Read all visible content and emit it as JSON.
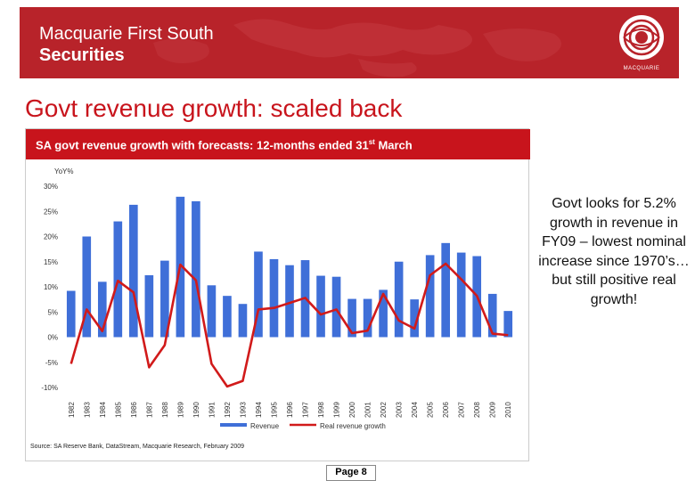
{
  "header": {
    "brand_line1": "Macquarie First South",
    "brand_line2": "Securities",
    "logo_text": "MACQUARIE"
  },
  "slide_title": "Govt revenue growth: scaled back",
  "chart_header": {
    "title_main": "SA govt revenue growth with forecasts:  12-months ended 31",
    "title_sup": "st",
    "title_end": " March"
  },
  "side_note": "Govt looks for 5.2% growth in revenue in FY09 – lowest nominal increase since 1970’s…but still positive real growth!",
  "source": "Source: SA Reserve Bank, DataStream, Macquarie Research, February 2009",
  "page_label": "Page 8",
  "colors": {
    "banner": "#b8232a",
    "title_red": "#c8141c",
    "bar": "#3f6fd8",
    "line": "#d11a1a"
  },
  "chart_data": {
    "type": "bar",
    "title": "SA govt revenue growth with forecasts:  12-months ended 31st March",
    "ylabel": "YoY%",
    "xlabel": "",
    "ylim": [
      -10,
      30
    ],
    "yticks": [
      "-10%",
      "-5%",
      "0%",
      "5%",
      "10%",
      "15%",
      "20%",
      "25%",
      "30%"
    ],
    "grid": false,
    "legend_position": "bottom",
    "categories": [
      "1982",
      "1983",
      "1984",
      "1985",
      "1986",
      "1987",
      "1988",
      "1989",
      "1990",
      "1991",
      "1992",
      "1993",
      "1994",
      "1995",
      "1996",
      "1997",
      "1998",
      "1999",
      "2000",
      "2001",
      "2002",
      "2003",
      "2004",
      "2005",
      "2006",
      "2007",
      "2008",
      "2009",
      "2010"
    ],
    "series": [
      {
        "name": "Revenue",
        "kind": "bar",
        "values": [
          9.2,
          20,
          11,
          23,
          26.3,
          12.3,
          15.2,
          27.9,
          27,
          10.3,
          8.2,
          6.6,
          17,
          15.5,
          14.3,
          15.3,
          12.2,
          12,
          7.6,
          7.6,
          9.4,
          15,
          7.5,
          16.3,
          18.7,
          16.8,
          16.1,
          8.6,
          5.2
        ]
      },
      {
        "name": "Real revenue growth",
        "kind": "line",
        "values": [
          -5.3,
          5.5,
          1.2,
          11.2,
          8.9,
          -6,
          -1.6,
          14.4,
          11.3,
          -5.3,
          -9.8,
          -8.7,
          5.5,
          5.8,
          6.8,
          7.8,
          4.5,
          5.5,
          0.8,
          1.3,
          8.6,
          3.3,
          1.7,
          12.3,
          14.6,
          11.5,
          8.2,
          0.7,
          0.4
        ]
      }
    ]
  }
}
